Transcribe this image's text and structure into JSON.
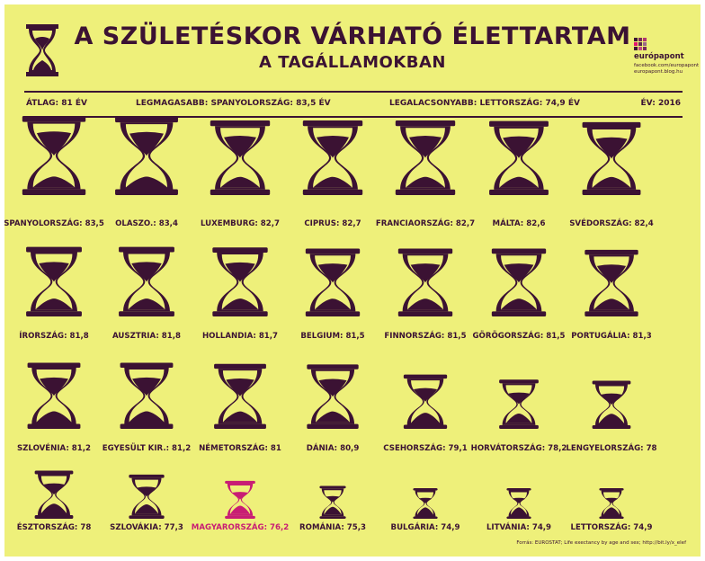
{
  "header": {
    "title_line1": "A SZÜLETÉSKOR VÁRHATÓ ÉLETTARTAM",
    "title_line2": "A TAGÁLLAMOKBAN"
  },
  "brand": {
    "name": "európapont",
    "line1": "facebook.com/europapont",
    "line2": "europapont.blog.hu",
    "square_colors": [
      "#3b1233",
      "#7a2a5a",
      "#b0366f",
      "#e2146f",
      "#5a2a4a",
      "#9b6a88",
      "#3b1233",
      "#c04a86",
      "#7a2a5a"
    ]
  },
  "stats": {
    "average": "ÁTLAG: 81 ÉV",
    "highest": "LEGMAGASABB: SPANYOLORSZÁG: 83,5 ÉV",
    "lowest": "LEGALACSONYABB: LETTORSZÁG: 74,9 ÉV",
    "year": "ÉV: 2016"
  },
  "source": "Forrás: EUROSTAT; Life exectancy by age and sex; http://bit.ly/x_elef",
  "colors": {
    "background": "#eef07a",
    "primary": "#3b1233",
    "highlight": "#c81d74"
  },
  "chart_data": {
    "type": "pictogram",
    "unit": "év",
    "highlight_category": "MAGYARORSZÁG",
    "categories": [
      {
        "name": "SPANYOLORSZÁG",
        "label": "SPANYOLORSZÁG: 83,5",
        "value": 83.5
      },
      {
        "name": "OLASZO.",
        "label": "OLASZO.: 83,4",
        "value": 83.4
      },
      {
        "name": "LUXEMBURG",
        "label": "LUXEMBURG: 82,7",
        "value": 82.7
      },
      {
        "name": "CIPRUS",
        "label": "CIPRUS: 82,7",
        "value": 82.7
      },
      {
        "name": "FRANCIAORSZÁG",
        "label": "FRANCIAORSZÁG: 82,7",
        "value": 82.7
      },
      {
        "name": "MÁLTA",
        "label": "MÁLTA: 82,6",
        "value": 82.6
      },
      {
        "name": "SVÉDORSZÁG",
        "label": "SVÉDORSZÁG: 82,4",
        "value": 82.4
      },
      {
        "name": "ÍRORSZÁG",
        "label": "ÍRORSZÁG: 81,8",
        "value": 81.8
      },
      {
        "name": "AUSZTRIA",
        "label": "AUSZTRIA: 81,8",
        "value": 81.8
      },
      {
        "name": "HOLLANDIA",
        "label": "HOLLANDIA: 81,7",
        "value": 81.7
      },
      {
        "name": "BELGIUM",
        "label": "BELGIUM: 81,5",
        "value": 81.5
      },
      {
        "name": "FINNORSZÁG",
        "label": "FINNORSZÁG: 81,5",
        "value": 81.5
      },
      {
        "name": "GÖRÖGORSZÁG",
        "label": "GÖRÖGORSZÁG: 81,5",
        "value": 81.5
      },
      {
        "name": "PORTUGÁLIA",
        "label": "PORTUGÁLIA: 81,3",
        "value": 81.3
      },
      {
        "name": "SZLOVÉNIA",
        "label": "SZLOVÉNIA: 81,2",
        "value": 81.2
      },
      {
        "name": "EGYESÜLT KIR.",
        "label": "EGYESÜLT KIR.: 81,2",
        "value": 81.2
      },
      {
        "name": "NÉMETORSZÁG",
        "label": "NÉMETORSZÁG: 81",
        "value": 81.0
      },
      {
        "name": "DÁNIA",
        "label": "DÁNIA: 80,9",
        "value": 80.9
      },
      {
        "name": "CSEHORSZÁG",
        "label": "CSEHORSZÁG: 79,1",
        "value": 79.1
      },
      {
        "name": "HORVÁTORSZÁG",
        "label": "HORVÁTORSZÁG: 78,2",
        "value": 78.2
      },
      {
        "name": "LENGYELORSZÁG",
        "label": "LENGYELORSZÁG: 78",
        "value": 78.0
      },
      {
        "name": "ÉSZTORSZÁG",
        "label": "ÉSZTORSZÁG: 78",
        "value": 78.0
      },
      {
        "name": "SZLOVÁKIA",
        "label": "SZLOVÁKIA: 77,3",
        "value": 77.3
      },
      {
        "name": "MAGYARORSZÁG",
        "label": "MAGYARORSZÁG: 76,2",
        "value": 76.2
      },
      {
        "name": "ROMÁNIA",
        "label": "ROMÁNIA: 75,3",
        "value": 75.3
      },
      {
        "name": "BULGÁRIA",
        "label": "BULGÁRIA: 74,9",
        "value": 74.9
      },
      {
        "name": "LITVÁNIA",
        "label": "LITVÁNIA: 74,9",
        "value": 74.9
      },
      {
        "name": "LETTORSZÁG",
        "label": "LETTORSZÁG: 74,9",
        "value": 74.9
      }
    ]
  }
}
